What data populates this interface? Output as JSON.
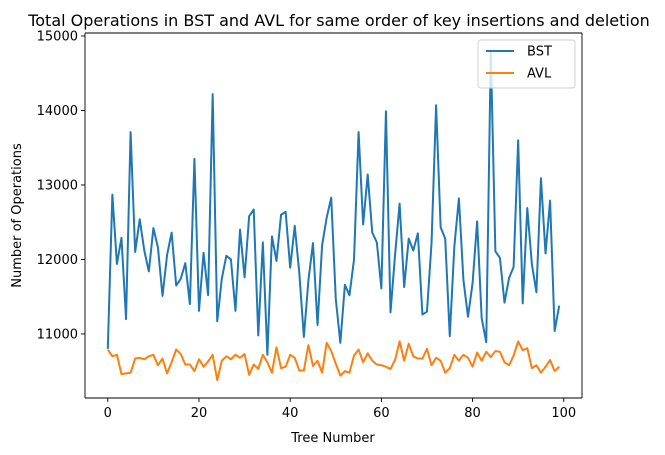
{
  "chart_data": {
    "type": "line",
    "title": "Total Operations in BST and AVL for same order of key insertions and deletion",
    "xlabel": "Tree Number",
    "ylabel": "Number of Operations",
    "xlim": [
      -5,
      104
    ],
    "ylim": [
      10140,
      15040
    ],
    "xticks": [
      0,
      20,
      40,
      60,
      80,
      100
    ],
    "yticks": [
      11000,
      12000,
      13000,
      14000,
      15000
    ],
    "grid": false,
    "legend_position": "top-right",
    "series": [
      {
        "name": "BST",
        "color": "#1f77b4",
        "x": [
          0,
          1,
          2,
          3,
          4,
          5,
          6,
          7,
          8,
          9,
          10,
          11,
          12,
          13,
          14,
          15,
          16,
          17,
          18,
          19,
          20,
          21,
          22,
          23,
          24,
          25,
          26,
          27,
          28,
          29,
          30,
          31,
          32,
          33,
          34,
          35,
          36,
          37,
          38,
          39,
          40,
          41,
          42,
          43,
          44,
          45,
          46,
          47,
          48,
          49,
          50,
          51,
          52,
          53,
          54,
          55,
          56,
          57,
          58,
          59,
          60,
          61,
          62,
          63,
          64,
          65,
          66,
          67,
          68,
          69,
          70,
          71,
          72,
          73,
          74,
          75,
          76,
          77,
          78,
          79,
          80,
          81,
          82,
          83,
          84,
          85,
          86,
          87,
          88,
          89,
          90,
          91,
          92,
          93,
          94,
          95,
          96,
          97,
          98,
          99
        ],
        "values": [
          10800,
          12870,
          11940,
          12290,
          11200,
          13710,
          12100,
          12540,
          12120,
          11840,
          12420,
          12160,
          11510,
          12060,
          12360,
          11650,
          11740,
          11950,
          11400,
          13350,
          11310,
          12090,
          11520,
          14220,
          11170,
          11740,
          12050,
          12000,
          11310,
          12400,
          11760,
          12580,
          12670,
          10980,
          12230,
          10720,
          12310,
          11980,
          12600,
          12640,
          11890,
          12450,
          11820,
          10960,
          11720,
          12220,
          11120,
          12190,
          12560,
          12830,
          11470,
          10880,
          11660,
          11520,
          12000,
          13710,
          12470,
          13140,
          12360,
          12230,
          11610,
          13990,
          11290,
          12060,
          12750,
          11630,
          12280,
          12120,
          12350,
          11260,
          11300,
          12220,
          14070,
          12430,
          12280,
          10970,
          12170,
          12820,
          11720,
          11230,
          11680,
          12510,
          11210,
          10890,
          14800,
          12110,
          12020,
          11420,
          11750,
          11900,
          13600,
          11410,
          12690,
          11940,
          11560,
          13090,
          12080,
          12790,
          11040,
          11380
        ]
      },
      {
        "name": "AVL",
        "color": "#ff7f0e",
        "x": [
          0,
          1,
          2,
          3,
          4,
          5,
          6,
          7,
          8,
          9,
          10,
          11,
          12,
          13,
          14,
          15,
          16,
          17,
          18,
          19,
          20,
          21,
          22,
          23,
          24,
          25,
          26,
          27,
          28,
          29,
          30,
          31,
          32,
          33,
          34,
          35,
          36,
          37,
          38,
          39,
          40,
          41,
          42,
          43,
          44,
          45,
          46,
          47,
          48,
          49,
          50,
          51,
          52,
          53,
          54,
          55,
          56,
          57,
          58,
          59,
          60,
          61,
          62,
          63,
          64,
          65,
          66,
          67,
          68,
          69,
          70,
          71,
          72,
          73,
          74,
          75,
          76,
          77,
          78,
          79,
          80,
          81,
          82,
          83,
          84,
          85,
          86,
          87,
          88,
          89,
          90,
          91,
          92,
          93,
          94,
          95,
          96,
          97,
          98,
          99
        ],
        "values": [
          10790,
          10700,
          10720,
          10460,
          10470,
          10480,
          10670,
          10680,
          10660,
          10700,
          10720,
          10580,
          10670,
          10470,
          10620,
          10790,
          10730,
          10590,
          10590,
          10500,
          10660,
          10560,
          10630,
          10720,
          10380,
          10640,
          10700,
          10660,
          10720,
          10680,
          10730,
          10450,
          10590,
          10530,
          10720,
          10620,
          10480,
          10820,
          10540,
          10560,
          10720,
          10680,
          10510,
          10510,
          10850,
          10570,
          10640,
          10480,
          10880,
          10770,
          10600,
          10440,
          10500,
          10480,
          10710,
          10790,
          10620,
          10740,
          10640,
          10590,
          10580,
          10560,
          10530,
          10650,
          10900,
          10640,
          10870,
          10700,
          10670,
          10670,
          10800,
          10580,
          10680,
          10640,
          10480,
          10540,
          10720,
          10640,
          10720,
          10680,
          10560,
          10750,
          10640,
          10760,
          10690,
          10770,
          10760,
          10620,
          10580,
          10710,
          10900,
          10780,
          10810,
          10540,
          10580,
          10480,
          10560,
          10650,
          10500,
          10560
        ]
      }
    ]
  }
}
